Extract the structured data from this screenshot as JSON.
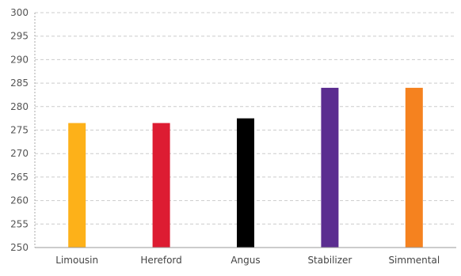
{
  "chart_data": {
    "type": "bar",
    "title": "",
    "xlabel": "",
    "ylabel": "",
    "categories": [
      "Limousin",
      "Hereford",
      "Angus",
      "Stabilizer",
      "Simmental"
    ],
    "values": [
      276.5,
      276.5,
      277.5,
      284,
      284
    ],
    "colors": [
      "#FDB119",
      "#DD1C32",
      "#000000",
      "#5B2D90",
      "#F5821F"
    ],
    "ylim": [
      250,
      300
    ],
    "yticks": [
      250,
      255,
      260,
      265,
      270,
      275,
      280,
      285,
      290,
      295,
      300
    ],
    "grid": true,
    "legend": "none"
  }
}
